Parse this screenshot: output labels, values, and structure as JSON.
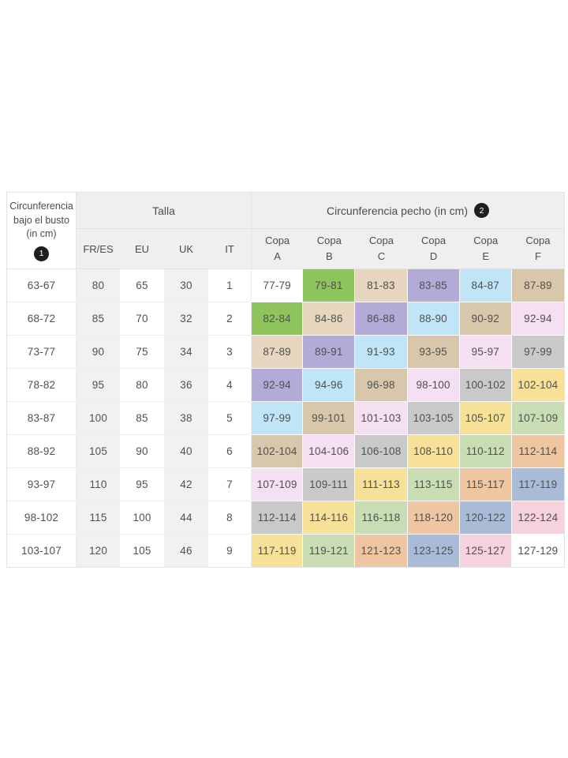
{
  "palette": {
    "white": "#ffffff",
    "green": "#8dc45c",
    "beige": "#e7d6bf",
    "purple": "#b3aad7",
    "blue": "#bfe5f6",
    "khaki": "#d9c7ab",
    "lilac": "#f4e0f2",
    "gray": "#c9c9c9",
    "yellow": "#f7e098",
    "lightgreen": "#c9ddb4",
    "salmon": "#eec6a2",
    "slate": "#aabbd8",
    "rose": "#f5d2dd"
  },
  "table": {
    "header": {
      "underbust_label": "Circunferencia bajo el busto (in cm)",
      "underbust_badge": "1",
      "talla_label": "Talla",
      "size_columns": [
        "FR/ES",
        "EU",
        "UK",
        "IT"
      ],
      "pecho_label": "Circunferencia pecho (in cm)",
      "pecho_badge": "2",
      "cup_word": "Copa",
      "cup_letters": [
        "A",
        "B",
        "C",
        "D",
        "E",
        "F"
      ]
    },
    "rows": [
      {
        "underbust": "63-67",
        "sizes": [
          "80",
          "65",
          "30",
          "1"
        ],
        "cups": [
          {
            "value": "77-79",
            "color": "white"
          },
          {
            "value": "79-81",
            "color": "green"
          },
          {
            "value": "81-83",
            "color": "beige"
          },
          {
            "value": "83-85",
            "color": "purple"
          },
          {
            "value": "84-87",
            "color": "blue"
          },
          {
            "value": "87-89",
            "color": "khaki"
          }
        ]
      },
      {
        "underbust": "68-72",
        "sizes": [
          "85",
          "70",
          "32",
          "2"
        ],
        "cups": [
          {
            "value": "82-84",
            "color": "green"
          },
          {
            "value": "84-86",
            "color": "beige"
          },
          {
            "value": "86-88",
            "color": "purple"
          },
          {
            "value": "88-90",
            "color": "blue"
          },
          {
            "value": "90-92",
            "color": "khaki"
          },
          {
            "value": "92-94",
            "color": "lilac"
          }
        ]
      },
      {
        "underbust": "73-77",
        "sizes": [
          "90",
          "75",
          "34",
          "3"
        ],
        "cups": [
          {
            "value": "87-89",
            "color": "beige"
          },
          {
            "value": "89-91",
            "color": "purple"
          },
          {
            "value": "91-93",
            "color": "blue"
          },
          {
            "value": "93-95",
            "color": "khaki"
          },
          {
            "value": "95-97",
            "color": "lilac"
          },
          {
            "value": "97-99",
            "color": "gray"
          }
        ]
      },
      {
        "underbust": "78-82",
        "sizes": [
          "95",
          "80",
          "36",
          "4"
        ],
        "cups": [
          {
            "value": "92-94",
            "color": "purple"
          },
          {
            "value": "94-96",
            "color": "blue"
          },
          {
            "value": "96-98",
            "color": "khaki"
          },
          {
            "value": "98-100",
            "color": "lilac"
          },
          {
            "value": "100-102",
            "color": "gray"
          },
          {
            "value": "102-104",
            "color": "yellow"
          }
        ]
      },
      {
        "underbust": "83-87",
        "sizes": [
          "100",
          "85",
          "38",
          "5"
        ],
        "cups": [
          {
            "value": "97-99",
            "color": "blue"
          },
          {
            "value": "99-101",
            "color": "khaki"
          },
          {
            "value": "101-103",
            "color": "lilac"
          },
          {
            "value": "103-105",
            "color": "gray"
          },
          {
            "value": "105-107",
            "color": "yellow"
          },
          {
            "value": "107-109",
            "color": "lightgreen"
          }
        ]
      },
      {
        "underbust": "88-92",
        "sizes": [
          "105",
          "90",
          "40",
          "6"
        ],
        "cups": [
          {
            "value": "102-104",
            "color": "khaki"
          },
          {
            "value": "104-106",
            "color": "lilac"
          },
          {
            "value": "106-108",
            "color": "gray"
          },
          {
            "value": "108-110",
            "color": "yellow"
          },
          {
            "value": "110-112",
            "color": "lightgreen"
          },
          {
            "value": "112-114",
            "color": "salmon"
          }
        ]
      },
      {
        "underbust": "93-97",
        "sizes": [
          "110",
          "95",
          "42",
          "7"
        ],
        "cups": [
          {
            "value": "107-109",
            "color": "lilac"
          },
          {
            "value": "109-111",
            "color": "gray"
          },
          {
            "value": "111-113",
            "color": "yellow"
          },
          {
            "value": "113-115",
            "color": "lightgreen"
          },
          {
            "value": "115-117",
            "color": "salmon"
          },
          {
            "value": "117-119",
            "color": "slate"
          }
        ]
      },
      {
        "underbust": "98-102",
        "sizes": [
          "115",
          "100",
          "44",
          "8"
        ],
        "cups": [
          {
            "value": "112-114",
            "color": "gray"
          },
          {
            "value": "114-116",
            "color": "yellow"
          },
          {
            "value": "116-118",
            "color": "lightgreen"
          },
          {
            "value": "118-120",
            "color": "salmon"
          },
          {
            "value": "120-122",
            "color": "slate"
          },
          {
            "value": "122-124",
            "color": "rose"
          }
        ]
      },
      {
        "underbust": "103-107",
        "sizes": [
          "120",
          "105",
          "46",
          "9"
        ],
        "cups": [
          {
            "value": "117-119",
            "color": "yellow"
          },
          {
            "value": "119-121",
            "color": "lightgreen"
          },
          {
            "value": "121-123",
            "color": "salmon"
          },
          {
            "value": "123-125",
            "color": "slate"
          },
          {
            "value": "125-127",
            "color": "rose"
          },
          {
            "value": "127-129",
            "color": "white"
          }
        ]
      }
    ]
  }
}
